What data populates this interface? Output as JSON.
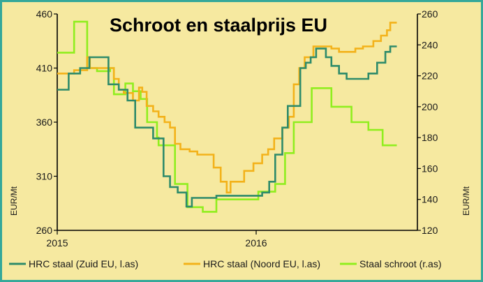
{
  "chart_data": {
    "type": "line",
    "title": "Schroot en staalprijs EU",
    "y_left": {
      "label": "EUR/Mt",
      "range": [
        260,
        460
      ],
      "ticks": [
        "260",
        "310",
        "360",
        "410",
        "460"
      ]
    },
    "y_right": {
      "label": "EUR/Mt",
      "range": [
        120,
        260
      ],
      "ticks": [
        "120",
        "140",
        "160",
        "180",
        "200",
        "220",
        "240",
        "260"
      ]
    },
    "x_axis": {
      "range": [
        "2015-01",
        "2016-10"
      ],
      "ticks": [
        "2015",
        "2016"
      ]
    },
    "grid": false,
    "legend_position": "bottom",
    "series": [
      {
        "name": "HRC staal (Zuid EU, l.as)",
        "axis": "left",
        "color": "#2e8b6a",
        "points": [
          [
            "2015-01-01",
            390
          ],
          [
            "2015-01-22",
            390
          ],
          [
            "2015-01-22",
            405
          ],
          [
            "2015-02-12",
            405
          ],
          [
            "2015-02-12",
            410
          ],
          [
            "2015-03-01",
            410
          ],
          [
            "2015-03-01",
            420
          ],
          [
            "2015-04-05",
            420
          ],
          [
            "2015-04-05",
            395
          ],
          [
            "2015-04-24",
            395
          ],
          [
            "2015-04-24",
            390
          ],
          [
            "2015-05-10",
            390
          ],
          [
            "2015-05-10",
            380
          ],
          [
            "2015-05-24",
            380
          ],
          [
            "2015-05-24",
            355
          ],
          [
            "2015-06-26",
            355
          ],
          [
            "2015-06-26",
            345
          ],
          [
            "2015-07-15",
            345
          ],
          [
            "2015-07-15",
            310
          ],
          [
            "2015-07-27",
            310
          ],
          [
            "2015-07-27",
            300
          ],
          [
            "2015-08-10",
            300
          ],
          [
            "2015-08-10",
            295
          ],
          [
            "2015-08-26",
            295
          ],
          [
            "2015-08-26",
            282
          ],
          [
            "2015-09-05",
            282
          ],
          [
            "2015-09-05",
            290
          ],
          [
            "2015-10-20",
            290
          ],
          [
            "2015-10-20",
            292
          ],
          [
            "2016-01-12",
            292
          ],
          [
            "2016-01-12",
            295
          ],
          [
            "2016-01-25",
            295
          ],
          [
            "2016-01-25",
            305
          ],
          [
            "2016-02-05",
            305
          ],
          [
            "2016-02-05",
            330
          ],
          [
            "2016-02-18",
            330
          ],
          [
            "2016-02-18",
            355
          ],
          [
            "2016-02-28",
            355
          ],
          [
            "2016-02-28",
            375
          ],
          [
            "2016-03-22",
            375
          ],
          [
            "2016-03-22",
            410
          ],
          [
            "2016-04-01",
            410
          ],
          [
            "2016-04-01",
            415
          ],
          [
            "2016-04-10",
            415
          ],
          [
            "2016-04-10",
            420
          ],
          [
            "2016-04-20",
            420
          ],
          [
            "2016-04-20",
            428
          ],
          [
            "2016-05-08",
            428
          ],
          [
            "2016-05-08",
            420
          ],
          [
            "2016-05-18",
            420
          ],
          [
            "2016-05-18",
            412
          ],
          [
            "2016-06-01",
            412
          ],
          [
            "2016-06-01",
            405
          ],
          [
            "2016-06-15",
            405
          ],
          [
            "2016-06-15",
            400
          ],
          [
            "2016-07-25",
            400
          ],
          [
            "2016-07-25",
            405
          ],
          [
            "2016-08-10",
            405
          ],
          [
            "2016-08-10",
            415
          ],
          [
            "2016-08-25",
            415
          ],
          [
            "2016-08-25",
            425
          ],
          [
            "2016-09-03",
            425
          ],
          [
            "2016-09-03",
            430
          ],
          [
            "2016-09-15",
            430
          ]
        ]
      },
      {
        "name": "HRC staal (Noord EU, l.as)",
        "axis": "left",
        "color": "#f3b21a",
        "points": [
          [
            "2015-01-01",
            405
          ],
          [
            "2015-02-01",
            405
          ],
          [
            "2015-02-01",
            408
          ],
          [
            "2015-02-25",
            408
          ],
          [
            "2015-02-25",
            420
          ],
          [
            "2015-03-02",
            420
          ],
          [
            "2015-03-02",
            410
          ],
          [
            "2015-04-15",
            410
          ],
          [
            "2015-04-15",
            400
          ],
          [
            "2015-04-24",
            400
          ],
          [
            "2015-04-24",
            390
          ],
          [
            "2015-05-03",
            390
          ],
          [
            "2015-05-03",
            387
          ],
          [
            "2015-05-20",
            387
          ],
          [
            "2015-05-20",
            380
          ],
          [
            "2015-05-31",
            380
          ],
          [
            "2015-05-31",
            392
          ],
          [
            "2015-06-06",
            392
          ],
          [
            "2015-06-06",
            388
          ],
          [
            "2015-06-14",
            388
          ],
          [
            "2015-06-14",
            375
          ],
          [
            "2015-06-26",
            375
          ],
          [
            "2015-06-26",
            370
          ],
          [
            "2015-07-06",
            370
          ],
          [
            "2015-07-06",
            365
          ],
          [
            "2015-07-17",
            365
          ],
          [
            "2015-07-17",
            360
          ],
          [
            "2015-07-27",
            360
          ],
          [
            "2015-07-27",
            355
          ],
          [
            "2015-08-05",
            355
          ],
          [
            "2015-08-05",
            340
          ],
          [
            "2015-08-15",
            340
          ],
          [
            "2015-08-15",
            335
          ],
          [
            "2015-09-01",
            335
          ],
          [
            "2015-09-01",
            333
          ],
          [
            "2015-09-15",
            333
          ],
          [
            "2015-09-15",
            330
          ],
          [
            "2015-10-01",
            330
          ],
          [
            "2015-10-01",
            330
          ],
          [
            "2015-10-15",
            330
          ],
          [
            "2015-10-15",
            318
          ],
          [
            "2015-10-28",
            318
          ],
          [
            "2015-10-28",
            305
          ],
          [
            "2015-11-08",
            305
          ],
          [
            "2015-11-08",
            295
          ],
          [
            "2015-11-15",
            295
          ],
          [
            "2015-11-15",
            305
          ],
          [
            "2015-12-10",
            305
          ],
          [
            "2015-12-10",
            315
          ],
          [
            "2015-12-27",
            315
          ],
          [
            "2015-12-27",
            322
          ],
          [
            "2016-01-12",
            322
          ],
          [
            "2016-01-12",
            330
          ],
          [
            "2016-01-23",
            330
          ],
          [
            "2016-01-23",
            335
          ],
          [
            "2016-02-03",
            335
          ],
          [
            "2016-02-03",
            345
          ],
          [
            "2016-02-18",
            345
          ],
          [
            "2016-02-18",
            355
          ],
          [
            "2016-03-01",
            355
          ],
          [
            "2016-03-01",
            365
          ],
          [
            "2016-03-10",
            365
          ],
          [
            "2016-03-10",
            395
          ],
          [
            "2016-03-20",
            395
          ],
          [
            "2016-03-20",
            410
          ],
          [
            "2016-03-30",
            410
          ],
          [
            "2016-03-30",
            420
          ],
          [
            "2016-04-15",
            420
          ],
          [
            "2016-04-15",
            430
          ],
          [
            "2016-05-18",
            430
          ],
          [
            "2016-05-18",
            428
          ],
          [
            "2016-06-01",
            428
          ],
          [
            "2016-06-01",
            425
          ],
          [
            "2016-07-01",
            425
          ],
          [
            "2016-07-01",
            428
          ],
          [
            "2016-07-15",
            428
          ],
          [
            "2016-07-15",
            430
          ],
          [
            "2016-08-03",
            430
          ],
          [
            "2016-08-03",
            435
          ],
          [
            "2016-08-17",
            435
          ],
          [
            "2016-08-17",
            440
          ],
          [
            "2016-08-28",
            440
          ],
          [
            "2016-08-28",
            445
          ],
          [
            "2016-09-03",
            445
          ],
          [
            "2016-09-03",
            452
          ],
          [
            "2016-09-15",
            452
          ]
        ]
      },
      {
        "name": "Staal schroot (r.as)",
        "axis": "right",
        "color": "#90ee1e",
        "points": [
          [
            "2015-01-01",
            235
          ],
          [
            "2015-02-01",
            235
          ],
          [
            "2015-02-01",
            255
          ],
          [
            "2015-02-25",
            255
          ],
          [
            "2015-02-25",
            225
          ],
          [
            "2015-03-15",
            225
          ],
          [
            "2015-03-15",
            223
          ],
          [
            "2015-04-08",
            223
          ],
          [
            "2015-04-08",
            225
          ],
          [
            "2015-04-15",
            225
          ],
          [
            "2015-04-15",
            208
          ],
          [
            "2015-05-06",
            208
          ],
          [
            "2015-05-06",
            215
          ],
          [
            "2015-05-20",
            215
          ],
          [
            "2015-05-20",
            210
          ],
          [
            "2015-06-03",
            210
          ],
          [
            "2015-06-03",
            205
          ],
          [
            "2015-06-15",
            205
          ],
          [
            "2015-06-15",
            190
          ],
          [
            "2015-07-03",
            190
          ],
          [
            "2015-07-03",
            180
          ],
          [
            "2015-07-06",
            180
          ],
          [
            "2015-07-06",
            175
          ],
          [
            "2015-08-05",
            175
          ],
          [
            "2015-08-05",
            150
          ],
          [
            "2015-08-28",
            150
          ],
          [
            "2015-08-28",
            135
          ],
          [
            "2015-09-25",
            135
          ],
          [
            "2015-09-25",
            132
          ],
          [
            "2015-10-20",
            132
          ],
          [
            "2015-10-20",
            140
          ],
          [
            "2016-01-05",
            140
          ],
          [
            "2016-01-05",
            145
          ],
          [
            "2016-02-05",
            145
          ],
          [
            "2016-02-05",
            150
          ],
          [
            "2016-02-23",
            150
          ],
          [
            "2016-02-23",
            170
          ],
          [
            "2016-03-10",
            170
          ],
          [
            "2016-03-10",
            190
          ],
          [
            "2016-04-12",
            190
          ],
          [
            "2016-04-12",
            212
          ],
          [
            "2016-05-18",
            212
          ],
          [
            "2016-05-18",
            200
          ],
          [
            "2016-06-24",
            200
          ],
          [
            "2016-06-24",
            190
          ],
          [
            "2016-07-25",
            190
          ],
          [
            "2016-07-25",
            185
          ],
          [
            "2016-08-20",
            185
          ],
          [
            "2016-08-20",
            175
          ],
          [
            "2016-09-15",
            175
          ]
        ]
      }
    ]
  }
}
